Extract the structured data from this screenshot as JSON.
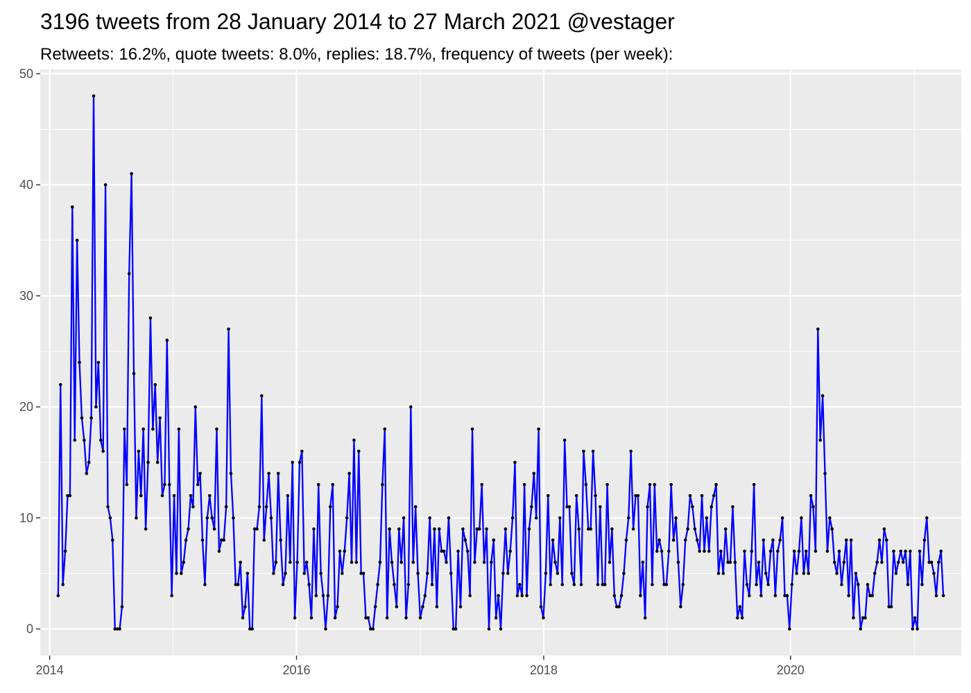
{
  "chart_data": {
    "type": "line",
    "title": "3196 tweets from 28 January 2014 to 27 March 2021 @vestager",
    "subtitle": "Retweets: 16.2%, quote tweets: 8.0%, replies: 18.7%, frequency of tweets (per week):",
    "xlabel": "",
    "ylabel": "",
    "xlim": [
      "2013-12-04",
      "2021-05-20"
    ],
    "ylim": [
      -2.4,
      50.4
    ],
    "x_ticks": [
      "2014",
      "2016",
      "2018",
      "2020"
    ],
    "y_ticks": [
      0,
      10,
      20,
      30,
      40,
      50
    ],
    "grid": true,
    "legend": "none",
    "colors": {
      "line": "#0000FF",
      "point": "#000000",
      "panel": "#EBEBEB",
      "grid": "#FFFFFF"
    },
    "series": [
      {
        "start": "2014-01-26",
        "interval_days": 7,
        "values": [
          3,
          22,
          4,
          7,
          12,
          12,
          38,
          17,
          35,
          24,
          19,
          17,
          14,
          15,
          19,
          48,
          20,
          24,
          17,
          16,
          40,
          11,
          10,
          8,
          0,
          0,
          0,
          2,
          18,
          13,
          32,
          41,
          23,
          10,
          16,
          12,
          18,
          9,
          15,
          28,
          18,
          22,
          15,
          19,
          12,
          13,
          26,
          13,
          3,
          12,
          5,
          18,
          5,
          6,
          8,
          9,
          12,
          11,
          20,
          13,
          14,
          8,
          4,
          10,
          12,
          10,
          9,
          18,
          7,
          8,
          8,
          11,
          27,
          14,
          10,
          4,
          4,
          6,
          1,
          2,
          5,
          0,
          0,
          9,
          9,
          11,
          21,
          8,
          11,
          14,
          10,
          5,
          6,
          14,
          8,
          4,
          5,
          12,
          6,
          15,
          1,
          6,
          15,
          16,
          5,
          6,
          4,
          1,
          9,
          3,
          13,
          5,
          3,
          0,
          3,
          11,
          13,
          1,
          2,
          7,
          5,
          7,
          10,
          14,
          6,
          17,
          6,
          16,
          5,
          5,
          1,
          1,
          0,
          0,
          2,
          4,
          6,
          13,
          18,
          1,
          9,
          6,
          4,
          2,
          9,
          6,
          10,
          1,
          4,
          20,
          6,
          11,
          5,
          1,
          2,
          3,
          5,
          10,
          4,
          9,
          2,
          9,
          7,
          7,
          6,
          10,
          5,
          0,
          0,
          7,
          2,
          9,
          8,
          7,
          3,
          18,
          6,
          9,
          9,
          13,
          6,
          9,
          0,
          6,
          8,
          1,
          3,
          0,
          5,
          9,
          5,
          7,
          10,
          15,
          3,
          4,
          3,
          13,
          3,
          9,
          11,
          14,
          10,
          18,
          2,
          1,
          5,
          12,
          4,
          8,
          6,
          5,
          10,
          4,
          17,
          11,
          11,
          5,
          4,
          12,
          9,
          4,
          16,
          13,
          9,
          9,
          16,
          12,
          4,
          11,
          4,
          4,
          13,
          6,
          9,
          3,
          2,
          2,
          3,
          5,
          8,
          10,
          16,
          9,
          12,
          12,
          3,
          6,
          1,
          11,
          13,
          4,
          13,
          7,
          8,
          7,
          4,
          4,
          7,
          13,
          8,
          10,
          6,
          2,
          4,
          8,
          9,
          12,
          11,
          9,
          8,
          7,
          12,
          7,
          10,
          7,
          11,
          12,
          13,
          5,
          7,
          5,
          9,
          6,
          6,
          11,
          6,
          1,
          2,
          1,
          7,
          4,
          3,
          7,
          13,
          4,
          6,
          3,
          8,
          5,
          4,
          7,
          8,
          3,
          7,
          8,
          10,
          3,
          3,
          0,
          4,
          7,
          5,
          7,
          10,
          5,
          7,
          5,
          12,
          11,
          7,
          27,
          17,
          21,
          14,
          7,
          10,
          9,
          6,
          5,
          7,
          4,
          6,
          8,
          3,
          8,
          1,
          5,
          4,
          0,
          1,
          1,
          4,
          3,
          3,
          5,
          6,
          8,
          6,
          9,
          8,
          2,
          2,
          7,
          5,
          6,
          7,
          6,
          7,
          4,
          7,
          0,
          1,
          0,
          7,
          4,
          8,
          10,
          6,
          6,
          5,
          3,
          6,
          7,
          3
        ]
      }
    ]
  }
}
